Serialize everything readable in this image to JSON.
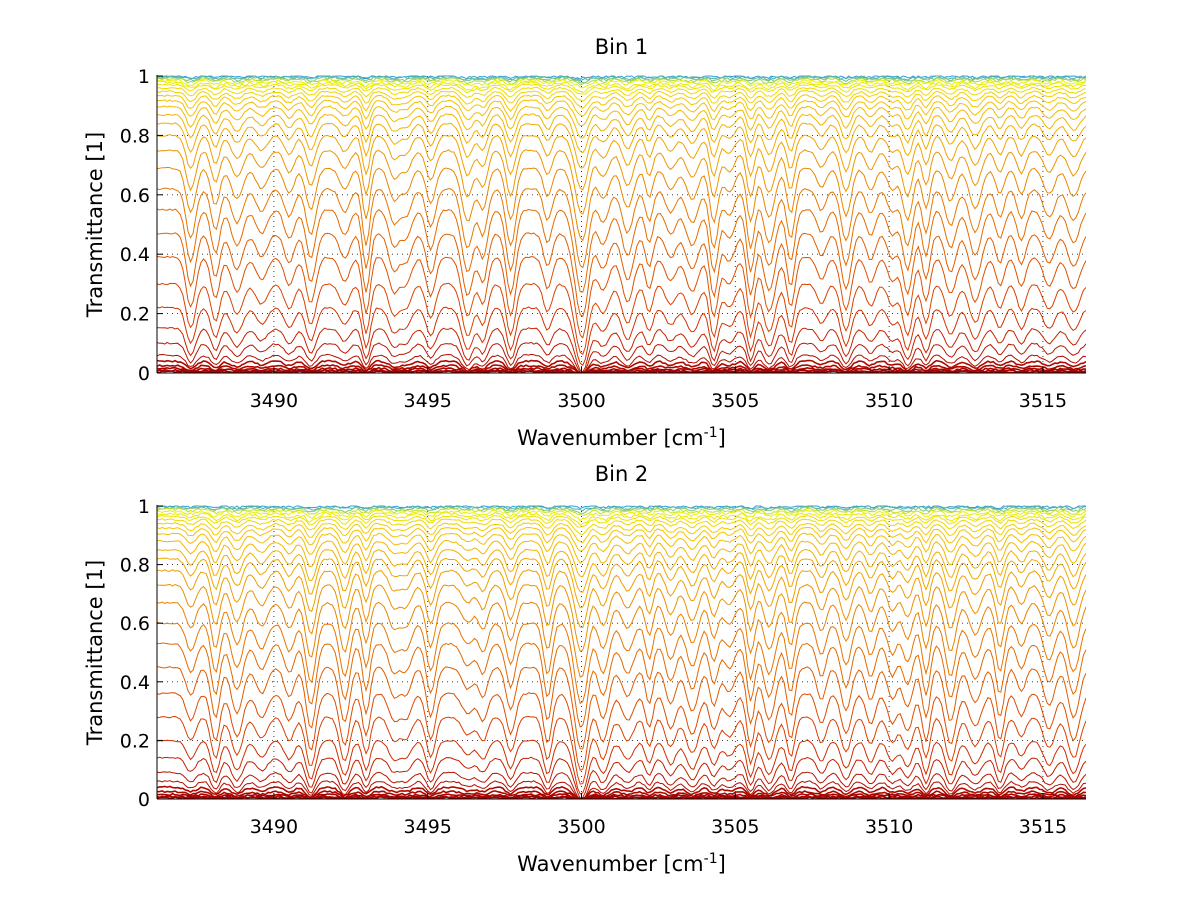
{
  "chart_data": [
    {
      "type": "line",
      "title": "Bin 1",
      "xlabel_base": "Wavenumber [cm",
      "xlabel_sup": "-1",
      "xlabel_tail": "]",
      "ylabel": "Transmittance [1]",
      "xlim": [
        3486.2,
        3516.4
      ],
      "ylim": [
        0,
        1
      ],
      "xticks": [
        3490,
        3495,
        3500,
        3505,
        3510,
        3515
      ],
      "xtick_labels": [
        "3490",
        "3495",
        "3500",
        "3505",
        "3510",
        "3515"
      ],
      "yticks": [
        0,
        0.2,
        0.4,
        0.6,
        0.8,
        1
      ],
      "ytick_labels": [
        "0",
        "0.2",
        "0.4",
        "0.6",
        "0.8",
        "1"
      ],
      "grid": true,
      "series_baselines": [
        1.0,
        0.997,
        0.994,
        0.99,
        0.985,
        0.978,
        0.97,
        0.96,
        0.948,
        0.934,
        0.917,
        0.896,
        0.87,
        0.84,
        0.8,
        0.75,
        0.69,
        0.62,
        0.55,
        0.47,
        0.39,
        0.3,
        0.22,
        0.15,
        0.1,
        0.06,
        0.04,
        0.025,
        0.015,
        0.008,
        0.004
      ],
      "absorption_lines_cm-1": [
        3487.3,
        3488.1,
        3488.8,
        3489.6,
        3490.5,
        3491.2,
        3492.3,
        3493.0,
        3493.9,
        3494.3,
        3495.1,
        3496.3,
        3496.8,
        3497.7,
        3498.9,
        3499.9,
        3500.1,
        3500.7,
        3501.5,
        3502.2,
        3502.9,
        3503.6,
        3504.3,
        3504.8,
        3505.5,
        3506.1,
        3506.8,
        3507.8,
        3508.6,
        3509.4,
        3510.1,
        3510.6,
        3511.2,
        3512.0,
        3512.8,
        3513.6,
        3514.3,
        3515.2,
        3516.0
      ]
    },
    {
      "type": "line",
      "title": "Bin 2",
      "xlabel_base": "Wavenumber [cm",
      "xlabel_sup": "-1",
      "xlabel_tail": "]",
      "ylabel": "Transmittance [1]",
      "xlim": [
        3486.2,
        3516.4
      ],
      "ylim": [
        0,
        1
      ],
      "xticks": [
        3490,
        3495,
        3500,
        3505,
        3510,
        3515
      ],
      "xtick_labels": [
        "3490",
        "3495",
        "3500",
        "3505",
        "3510",
        "3515"
      ],
      "yticks": [
        0,
        0.2,
        0.4,
        0.6,
        0.8,
        1
      ],
      "ytick_labels": [
        "0",
        "0.2",
        "0.4",
        "0.6",
        "0.8",
        "1"
      ],
      "grid": true,
      "series_baselines": [
        1.0,
        0.997,
        0.993,
        0.988,
        0.982,
        0.974,
        0.965,
        0.954,
        0.94,
        0.925,
        0.905,
        0.88,
        0.85,
        0.82,
        0.78,
        0.73,
        0.67,
        0.6,
        0.53,
        0.45,
        0.36,
        0.28,
        0.2,
        0.14,
        0.09,
        0.06,
        0.04,
        0.025,
        0.015,
        0.008,
        0.004
      ],
      "absorption_lines_cm-1": [
        3487.3,
        3488.1,
        3488.8,
        3489.6,
        3490.5,
        3491.2,
        3492.3,
        3493.0,
        3493.9,
        3494.3,
        3495.1,
        3496.3,
        3496.8,
        3497.7,
        3498.9,
        3499.9,
        3500.1,
        3500.7,
        3501.5,
        3502.2,
        3502.9,
        3503.6,
        3504.3,
        3504.8,
        3505.5,
        3506.1,
        3506.8,
        3507.8,
        3508.6,
        3509.4,
        3510.1,
        3510.6,
        3511.2,
        3512.0,
        3512.8,
        3513.6,
        3514.3,
        3515.2,
        3516.0
      ]
    }
  ],
  "colors": {
    "low_transmittance": "#a50000",
    "mid_low": "#d83a00",
    "mid": "#e87d00",
    "mid_high": "#f5c400",
    "high": "#e8f000",
    "top": "#2aa0d8"
  }
}
